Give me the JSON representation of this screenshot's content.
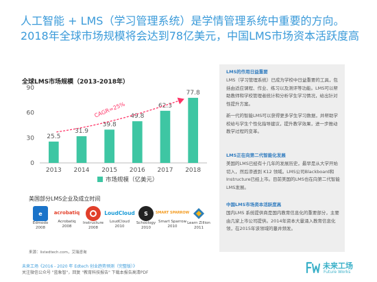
{
  "headline": {
    "line1": "人工智能 + LMS（学习管理系统）是学情管理系统中重要的方向。",
    "line2": "2018年全球市场规模将会达到78亿美元，中国LMS市场资本活跃度高"
  },
  "chart_data": {
    "type": "bar",
    "title": "全球LMS市场规模（2013-2018年）",
    "categories": [
      "2013",
      "2014",
      "2015",
      "2016",
      "2017",
      "2018"
    ],
    "series": [
      {
        "name": "市场规模（亿美元）",
        "values": [
          25.5,
          31.9,
          39.8,
          49.8,
          62.3,
          77.8
        ],
        "color": "#3ec6a3"
      }
    ],
    "yticks": [
      0,
      30,
      60,
      90
    ],
    "ylim": [
      0,
      90
    ],
    "annotation": "CAGR=25%",
    "annotation_color": "#ff3366",
    "grid": false,
    "legend_position": "bottom"
  },
  "logos": {
    "title": "美国部分LMS企业及成立时间",
    "items": [
      {
        "name": "Edmodo",
        "year": "2008",
        "icon": "edmodo-logo",
        "color": "#1a73c9",
        "text": "e"
      },
      {
        "name": "Acrobatiq",
        "year": "2008",
        "icon": "acrobatiq-logo",
        "color": "#e4402a",
        "text": "acrobatiq"
      },
      {
        "name": "Instructure",
        "year": "2008",
        "icon": "instructure-logo",
        "color": "#e13f2b",
        "text": ""
      },
      {
        "name": "LoudCloud",
        "year": "2010",
        "icon": "loudcloud-logo",
        "color": "#1b9bd7",
        "text": "LoudCloud"
      },
      {
        "name": "Schoology",
        "year": "2010",
        "icon": "schoology-logo",
        "color": "#222222",
        "text": "S"
      },
      {
        "name": "Smart Sparrow",
        "year": "2010",
        "icon": "smartsparrow-logo",
        "color": "#f39a1e",
        "text": "SMART SPARROW"
      },
      {
        "name": "Learn Zillion",
        "year": "2011",
        "icon": "learnzillion-logo",
        "color": "#2c7fb8",
        "text": ""
      }
    ],
    "source": "来源：listedtech.com，艾瑞咨询"
  },
  "side": {
    "sections": [
      {
        "heading": "LMS的作用日益重要",
        "paragraphs": [
          "LMS（学习管理系统）已成为学校中日益重要的工具，包括由适应课程、作业、练习以及测评等功能。LMS可以帮助教师和学校管理者统计和分析学生学习情况，给出针对性提升方案。",
          "新一代的智能LMS可以获得更多学生学习数据，并帮助学校给与学生个性化指导建议，提升教学效果，进一步推动教学过程的变革。"
        ]
      },
      {
        "heading": "LMS正在向第二代智能化发展",
        "paragraphs": [
          "美国的LMS已经有十几年的发展历史，最早是从大学开始切入，然后渗透到 K12 领域。LMS公司Blackboard和Instructure已经上市。目前美国的LMS也在向第二代智能LMS发展。"
        ]
      },
      {
        "heading": "中国LMS市场资本活跃度高",
        "paragraphs": [
          "国内LMS 系统提供商是国内教育信息化的重要部分，主要由几家上市公司提供。2014年资本大量涌入教育信息化领，在2015年该领域的蔓井频发。"
        ]
      }
    ]
  },
  "footer": {
    "title": "未来工场《2016 - 2020 年 Edtech 创业趋势预测（完整版）》",
    "subtitle": "关注微信公众号 \"蓝象智\"，回复 \"教育科技报告\" 下载本报告高清PDF",
    "brand_cn": "未来工场",
    "brand_en": "Future Works"
  }
}
